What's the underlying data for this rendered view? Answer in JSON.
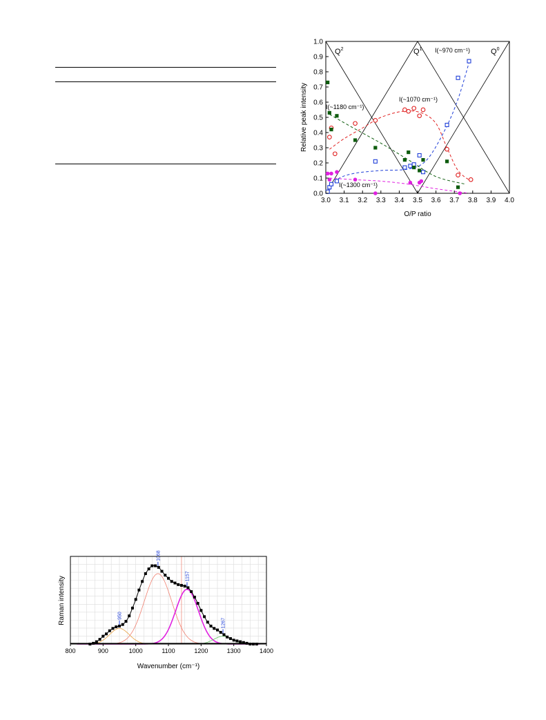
{
  "chart_data": [
    {
      "type": "scatter",
      "title": "",
      "xlabel": "O/P ratio",
      "ylabel": "Relative peak intensity",
      "xlim": [
        3.0,
        4.0
      ],
      "ylim": [
        0.0,
        1.0
      ],
      "x_ticks": [
        "3.0",
        "3.1",
        "3.2",
        "3.3",
        "3.4",
        "3.5",
        "3.6",
        "3.7",
        "3.8",
        "3.9",
        "4.0"
      ],
      "y_ticks": [
        "0.0",
        "0.1",
        "0.2",
        "0.3",
        "0.4",
        "0.5",
        "0.6",
        "0.7",
        "0.8",
        "0.9",
        "1.0"
      ],
      "grid": false,
      "region_labels": [
        "Q2",
        "Q1",
        "Q0"
      ],
      "reference_lines": [
        {
          "x": [
            3.0,
            3.5
          ],
          "y": [
            1.0,
            0.0
          ]
        },
        {
          "x": [
            3.0,
            3.5
          ],
          "y": [
            0.0,
            1.0
          ]
        },
        {
          "x": [
            3.5,
            4.0
          ],
          "y": [
            1.0,
            0.0
          ]
        },
        {
          "x": [
            3.5,
            4.0
          ],
          "y": [
            0.0,
            1.0
          ]
        }
      ],
      "series": [
        {
          "name": "I(~970 cm⁻¹)",
          "color": "#1f3fd8",
          "marker": "open-square",
          "points": [
            [
              3.01,
              0.01
            ],
            [
              3.02,
              0.04
            ],
            [
              3.03,
              0.06
            ],
            [
              3.06,
              0.08
            ],
            [
              3.27,
              0.21
            ],
            [
              3.43,
              0.17
            ],
            [
              3.46,
              0.18
            ],
            [
              3.48,
              0.19
            ],
            [
              3.51,
              0.25
            ],
            [
              3.53,
              0.14
            ],
            [
              3.66,
              0.45
            ],
            [
              3.72,
              0.76
            ],
            [
              3.78,
              0.87
            ]
          ],
          "trend": [
            [
              3.02,
              0.02
            ],
            [
              3.06,
              0.09
            ],
            [
              3.15,
              0.13
            ],
            [
              3.3,
              0.15
            ],
            [
              3.45,
              0.16
            ],
            [
              3.55,
              0.22
            ],
            [
              3.65,
              0.42
            ],
            [
              3.72,
              0.62
            ],
            [
              3.78,
              0.86
            ]
          ]
        },
        {
          "name": "I(~1070 cm⁻¹)",
          "color": "#e02020",
          "marker": "open-circle",
          "points": [
            [
              3.02,
              0.37
            ],
            [
              3.03,
              0.43
            ],
            [
              3.05,
              0.26
            ],
            [
              3.16,
              0.46
            ],
            [
              3.27,
              0.48
            ],
            [
              3.43,
              0.55
            ],
            [
              3.45,
              0.54
            ],
            [
              3.48,
              0.56
            ],
            [
              3.51,
              0.51
            ],
            [
              3.53,
              0.55
            ],
            [
              3.66,
              0.29
            ],
            [
              3.72,
              0.12
            ],
            [
              3.79,
              0.09
            ]
          ],
          "trend": [
            [
              3.02,
              0.29
            ],
            [
              3.1,
              0.36
            ],
            [
              3.2,
              0.43
            ],
            [
              3.3,
              0.5
            ],
            [
              3.42,
              0.54
            ],
            [
              3.52,
              0.53
            ],
            [
              3.6,
              0.46
            ],
            [
              3.66,
              0.3
            ],
            [
              3.72,
              0.15
            ],
            [
              3.79,
              0.08
            ]
          ]
        },
        {
          "name": "I(~1180 cm⁻¹)",
          "color": "#0e5c0e",
          "marker": "filled-square",
          "points": [
            [
              3.01,
              0.73
            ],
            [
              3.02,
              0.53
            ],
            [
              3.03,
              0.42
            ],
            [
              3.06,
              0.51
            ],
            [
              3.16,
              0.35
            ],
            [
              3.27,
              0.3
            ],
            [
              3.43,
              0.22
            ],
            [
              3.45,
              0.27
            ],
            [
              3.48,
              0.17
            ],
            [
              3.51,
              0.15
            ],
            [
              3.53,
              0.22
            ],
            [
              3.66,
              0.21
            ],
            [
              3.72,
              0.04
            ]
          ],
          "trend": [
            [
              3.02,
              0.52
            ],
            [
              3.15,
              0.43
            ],
            [
              3.3,
              0.33
            ],
            [
              3.45,
              0.22
            ],
            [
              3.6,
              0.11
            ],
            [
              3.76,
              0.06
            ]
          ]
        },
        {
          "name": "I(~1300 cm⁻¹)",
          "color": "#e020e0",
          "marker": "filled-circle",
          "points": [
            [
              3.01,
              0.13
            ],
            [
              3.02,
              0.09
            ],
            [
              3.03,
              0.13
            ],
            [
              3.06,
              0.14
            ],
            [
              3.16,
              0.09
            ],
            [
              3.27,
              0.0
            ],
            [
              3.46,
              0.07
            ],
            [
              3.51,
              0.07
            ],
            [
              3.52,
              0.08
            ],
            [
              3.73,
              0.0
            ]
          ],
          "trend": [
            [
              3.02,
              0.1
            ],
            [
              3.15,
              0.09
            ],
            [
              3.3,
              0.08
            ],
            [
              3.45,
              0.06
            ],
            [
              3.6,
              0.03
            ],
            [
              3.78,
              0.0
            ]
          ]
        }
      ],
      "annotations": [
        "I(~970 cm⁻¹)",
        "I(~1070 cm⁻¹)",
        "I(~1180 cm⁻¹)",
        "I(~1300 cm⁻¹)"
      ]
    },
    {
      "type": "line",
      "title": "",
      "xlabel": "Wavenumber (cm⁻¹)",
      "ylabel": "Raman intensity",
      "xlim": [
        800,
        1400
      ],
      "ylim": [
        0,
        1.12
      ],
      "x_ticks": [
        "800",
        "900",
        "1000",
        "1100",
        "1200",
        "1300",
        "1400"
      ],
      "grid": true,
      "peak_labels": [
        {
          "x": 950,
          "label": "950"
        },
        {
          "x": 1068,
          "label": "1068"
        },
        {
          "x": 1157,
          "label": "1157"
        },
        {
          "x": 1267,
          "label": "1267"
        }
      ],
      "series": [
        {
          "name": "",
          "color": "#000000",
          "style": "dotted-measured",
          "x": [
            860,
            870,
            880,
            890,
            900,
            910,
            920,
            930,
            940,
            950,
            960,
            970,
            980,
            990,
            1000,
            1010,
            1020,
            1030,
            1040,
            1050,
            1060,
            1070,
            1080,
            1090,
            1100,
            1110,
            1120,
            1130,
            1140,
            1150,
            1160,
            1170,
            1180,
            1190,
            1200,
            1210,
            1220,
            1230,
            1240,
            1250,
            1260,
            1270,
            1280,
            1290,
            1300,
            1310,
            1320,
            1330,
            1340,
            1350,
            1360,
            1370
          ],
          "y": [
            0.0,
            0.01,
            0.03,
            0.06,
            0.1,
            0.13,
            0.17,
            0.2,
            0.22,
            0.23,
            0.25,
            0.29,
            0.36,
            0.46,
            0.57,
            0.69,
            0.8,
            0.9,
            0.96,
            1.0,
            1.0,
            0.98,
            0.93,
            0.88,
            0.84,
            0.8,
            0.78,
            0.76,
            0.75,
            0.74,
            0.72,
            0.67,
            0.6,
            0.52,
            0.43,
            0.35,
            0.28,
            0.23,
            0.2,
            0.18,
            0.15,
            0.12,
            0.09,
            0.07,
            0.05,
            0.04,
            0.03,
            0.02,
            0.01,
            0.0,
            0.0,
            0.0
          ]
        },
        {
          "name": "",
          "color": "#e8a040",
          "style": "thin",
          "gauss": {
            "center": 950,
            "height": 0.2,
            "sigma": 30
          }
        },
        {
          "name": "",
          "color": "#f08070",
          "style": "thin",
          "gauss": {
            "center": 1068,
            "height": 0.9,
            "sigma": 42
          }
        },
        {
          "name": "",
          "color": "#e020e0",
          "style": "thick",
          "gauss": {
            "center": 1157,
            "height": 0.7,
            "sigma": 35
          }
        },
        {
          "name": "",
          "color": "#60c060",
          "style": "thin",
          "gauss": {
            "center": 1267,
            "height": 0.1,
            "sigma": 28
          }
        }
      ],
      "reference_line_x": 1140
    }
  ]
}
